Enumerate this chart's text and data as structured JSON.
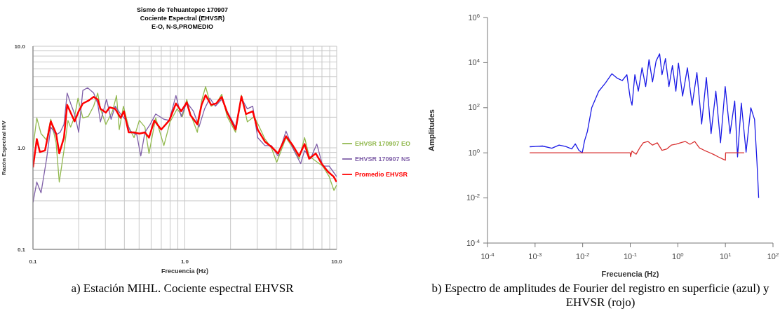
{
  "chart_data": [
    {
      "type": "line",
      "title": "Sismo de Tehuantepec 170907\nCociente Espectral  (EHVSR)\nE-O, N-S,PROMEDIO",
      "xlabel": "Frecuencia (Hz)",
      "ylabel": "Razón Espectral  H/V",
      "log": "xy",
      "grid": true,
      "legend": "right",
      "marker": "none",
      "line_style": "solid",
      "xlim": [
        0.1,
        10
      ],
      "ylim": [
        0.1,
        10
      ],
      "xticks": [
        {
          "value": 0.1,
          "label": "0.1"
        },
        {
          "value": 0.2,
          "label": null
        },
        {
          "value": 0.3,
          "label": null
        },
        {
          "value": 0.4,
          "label": null
        },
        {
          "value": 0.5,
          "label": null
        },
        {
          "value": 0.6,
          "label": null
        },
        {
          "value": 0.7,
          "label": null
        },
        {
          "value": 0.8,
          "label": null
        },
        {
          "value": 0.9,
          "label": null
        },
        {
          "value": 1,
          "label": "1.0"
        },
        {
          "value": 2,
          "label": null
        },
        {
          "value": 3,
          "label": null
        },
        {
          "value": 4,
          "label": null
        },
        {
          "value": 5,
          "label": null
        },
        {
          "value": 6,
          "label": null
        },
        {
          "value": 7,
          "label": null
        },
        {
          "value": 8,
          "label": null
        },
        {
          "value": 9,
          "label": null
        },
        {
          "value": 10,
          "label": "10.0"
        }
      ],
      "yticks": [
        {
          "value": 0.1,
          "label": "0.1"
        },
        {
          "value": 0.2,
          "label": null
        },
        {
          "value": 0.3,
          "label": null
        },
        {
          "value": 0.4,
          "label": null
        },
        {
          "value": 0.5,
          "label": null
        },
        {
          "value": 0.6,
          "label": null
        },
        {
          "value": 0.7,
          "label": null
        },
        {
          "value": 0.8,
          "label": null
        },
        {
          "value": 0.9,
          "label": null
        },
        {
          "value": 1,
          "label": "1.0"
        },
        {
          "value": 2,
          "label": null
        },
        {
          "value": 3,
          "label": null
        },
        {
          "value": 4,
          "label": null
        },
        {
          "value": 5,
          "label": null
        },
        {
          "value": 6,
          "label": null
        },
        {
          "value": 7,
          "label": null
        },
        {
          "value": 8,
          "label": null
        },
        {
          "value": 9,
          "label": null
        },
        {
          "value": 10,
          "label": "10.0"
        }
      ],
      "series": [
        {
          "name": "EHVSR 170907 EO",
          "color": "#92b94f",
          "x": [
            0.1,
            0.106,
            0.113,
            0.123,
            0.131,
            0.142,
            0.149,
            0.16,
            0.17,
            0.177,
            0.188,
            0.198,
            0.213,
            0.231,
            0.251,
            0.267,
            0.278,
            0.302,
            0.334,
            0.355,
            0.37,
            0.394,
            0.427,
            0.463,
            0.502,
            0.546,
            0.581,
            0.643,
            0.728,
            0.8,
            0.89,
            0.965,
            1.03,
            1.09,
            1.21,
            1.29,
            1.37,
            1.49,
            1.61,
            1.75,
            1.9,
            2.16,
            2.36,
            2.58,
            2.86,
            3.07,
            3.37,
            3.72,
            4.03,
            4.64,
            5.13,
            5.66,
            6.15,
            6.59,
            7.29,
            8.1,
            8.93,
            9.6,
            10
          ],
          "values": [
            1.0,
            1.97,
            1.38,
            1.19,
            1.91,
            1.12,
            0.46,
            0.94,
            1.86,
            1.6,
            2.03,
            3.08,
            1.97,
            2.03,
            2.57,
            3.46,
            2.42,
            1.7,
            2.29,
            3.27,
            1.51,
            2.57,
            1.6,
            1.26,
            1.86,
            1.6,
            0.88,
            1.97,
            1.05,
            1.8,
            2.42,
            2.03,
            3.0,
            2.15,
            1.42,
            2.9,
            4.0,
            2.57,
            2.73,
            3.37,
            2.03,
            1.42,
            3.3,
            1.8,
            2.03,
            1.65,
            1.22,
            1.0,
            0.72,
            1.26,
            1.0,
            0.78,
            1.26,
            0.83,
            0.74,
            0.66,
            0.52,
            0.38,
            0.43
          ]
        },
        {
          "name": "EHVSR 170907 NS",
          "color": "#7f5fa8",
          "x": [
            0.1,
            0.106,
            0.113,
            0.123,
            0.131,
            0.142,
            0.151,
            0.16,
            0.168,
            0.177,
            0.188,
            0.2,
            0.213,
            0.229,
            0.251,
            0.267,
            0.278,
            0.305,
            0.327,
            0.348,
            0.378,
            0.41,
            0.437,
            0.483,
            0.513,
            0.546,
            0.591,
            0.643,
            0.728,
            0.79,
            0.874,
            0.947,
            1.03,
            1.14,
            1.24,
            1.35,
            1.46,
            1.59,
            1.75,
            1.9,
            2.16,
            2.36,
            2.58,
            2.8,
            3.02,
            3.37,
            3.72,
            4.11,
            4.64,
            5.13,
            5.79,
            6.15,
            6.73,
            7.4,
            8.1,
            8.93,
            10
          ],
          "values": [
            0.29,
            0.46,
            0.36,
            0.78,
            1.6,
            1.34,
            1.42,
            1.7,
            3.46,
            2.73,
            2.15,
            1.42,
            3.67,
            3.9,
            3.46,
            2.73,
            1.8,
            3.0,
            1.91,
            2.57,
            2.15,
            1.86,
            1.46,
            1.34,
            0.83,
            1.42,
            1.7,
            2.15,
            1.91,
            1.86,
            3.27,
            2.03,
            2.8,
            2.29,
            1.6,
            2.42,
            3.08,
            2.57,
            3.0,
            2.29,
            1.6,
            3.08,
            2.42,
            2.57,
            1.26,
            1.05,
            1.05,
            0.83,
            1.46,
            1.0,
            0.7,
            0.94,
            0.78,
            1.09,
            0.66,
            0.66,
            0.52
          ]
        },
        {
          "name": "Promedio EHVSR",
          "color": "#ff0000",
          "x": [
            0.1,
            0.106,
            0.111,
            0.12,
            0.131,
            0.142,
            0.149,
            0.16,
            0.168,
            0.177,
            0.188,
            0.2,
            0.213,
            0.231,
            0.251,
            0.267,
            0.278,
            0.302,
            0.32,
            0.348,
            0.378,
            0.397,
            0.427,
            0.463,
            0.502,
            0.546,
            0.581,
            0.63,
            0.699,
            0.79,
            0.874,
            0.947,
            1.03,
            1.09,
            1.21,
            1.29,
            1.37,
            1.49,
            1.61,
            1.75,
            1.9,
            2.16,
            2.36,
            2.53,
            2.8,
            3.02,
            3.37,
            3.72,
            4.11,
            4.64,
            5.13,
            5.66,
            6.15,
            6.59,
            7.29,
            7.95,
            8.78,
            9.55,
            10
          ],
          "values": [
            0.64,
            1.22,
            0.91,
            0.94,
            1.82,
            1.38,
            0.88,
            1.26,
            2.65,
            2.22,
            1.82,
            2.29,
            2.73,
            2.9,
            3.17,
            2.99,
            2.42,
            2.22,
            2.5,
            2.42,
            1.97,
            2.29,
            1.42,
            1.42,
            1.38,
            1.42,
            1.26,
            1.86,
            1.51,
            1.86,
            2.73,
            2.29,
            2.8,
            2.09,
            1.7,
            2.65,
            3.3,
            2.65,
            2.73,
            3.17,
            2.22,
            1.51,
            3.2,
            2.15,
            2.29,
            1.51,
            1.15,
            1.02,
            0.88,
            1.3,
            1.06,
            0.83,
            1.09,
            0.78,
            0.88,
            0.7,
            0.58,
            0.52,
            0.46
          ]
        }
      ],
      "annotations": [
        "a) Estación MIHL. Cociente espectral EHVSR"
      ]
    },
    {
      "type": "line",
      "xlabel": "Frecuencia (Hz)",
      "ylabel": "Amplitudes",
      "log": "xy",
      "grid": false,
      "marker": "none",
      "line_style": "solid",
      "xlim": [
        0.0001,
        100
      ],
      "ylim": [
        0.0001,
        1000000
      ],
      "xticks": [
        {
          "value": 0.0001,
          "label": "10$^{-4}$"
        },
        {
          "value": 0.001,
          "label": "10$^{-3}$"
        },
        {
          "value": 0.01,
          "label": "10$^{-2}$"
        },
        {
          "value": 0.1,
          "label": "10$^{-1}$"
        },
        {
          "value": 1,
          "label": "10$^{0}$"
        },
        {
          "value": 10,
          "label": "10$^{1}$"
        },
        {
          "value": 100,
          "label": "10$^{2}$"
        }
      ],
      "yticks": [
        {
          "value": 0.0001,
          "label": "10$^{-4}$"
        },
        {
          "value": 0.01,
          "label": "10$^{-2}$"
        },
        {
          "value": 1,
          "label": "10$^{0}$"
        },
        {
          "value": 100,
          "label": "10$^{2}$"
        },
        {
          "value": 10000,
          "label": "10$^{4}$"
        },
        {
          "value": 1000000,
          "label": "10$^{6}$"
        }
      ],
      "series": [
        {
          "color": "#1a1ae6",
          "x": [
            0.00077,
            0.00143,
            0.00225,
            0.0032,
            0.0044,
            0.0059,
            0.007,
            0.0083,
            0.0098,
            0.011,
            0.0126,
            0.0155,
            0.0218,
            0.03,
            0.041,
            0.054,
            0.068,
            0.085,
            0.1,
            0.109,
            0.125,
            0.148,
            0.177,
            0.211,
            0.248,
            0.294,
            0.35,
            0.415,
            0.465,
            0.55,
            0.65,
            0.77,
            0.91,
            1.03,
            1.26,
            1.59,
            2.0,
            2.52,
            3.17,
            3.98,
            5.0,
            6.3,
            7.9,
            9.9,
            12.5,
            15.7,
            18,
            21.6,
            27.2,
            34.2,
            41,
            46,
            48.6,
            50
          ],
          "values": [
            1.86,
            2.0,
            1.6,
            2.2,
            1.9,
            1.5,
            2.5,
            1.3,
            1.0,
            3.5,
            9,
            100,
            540,
            1230,
            3200,
            2000,
            1600,
            2900,
            260,
            130,
            2900,
            540,
            5900,
            870,
            13500,
            1400,
            12000,
            24500,
            2900,
            15000,
            870,
            7400,
            540,
            9500,
            330,
            5900,
            130,
            3600,
            19,
            2200,
            7.2,
            540,
            2.8,
            870,
            7.2,
            200,
            0.66,
            160,
            1.07,
            100,
            30,
            0.41,
            0.038,
            0.01
          ]
        },
        {
          "color": "#d83030",
          "x": [
            0.00077,
            0.1,
            0.1015,
            0.109,
            0.133,
            0.158,
            0.188,
            0.236,
            0.294,
            0.37,
            0.465,
            0.59,
            0.73,
            0.91,
            1.14,
            1.44,
            1.8,
            2.26,
            2.84,
            3.57,
            4.5,
            5.6,
            7.1,
            9.0,
            10,
            10.1,
            24.8
          ],
          "values": [
            1.0,
            1.0,
            0.68,
            1.2,
            0.87,
            1.65,
            2.8,
            3.2,
            2.2,
            2.8,
            1.3,
            1.5,
            2.2,
            2.4,
            2.8,
            3.2,
            2.4,
            3.2,
            1.65,
            1.3,
            1.05,
            0.86,
            0.66,
            0.52,
            0.47,
            1.0,
            1.0
          ]
        }
      ],
      "annotations": [
        "b) Espectro de amplitudes de Fourier del registro en superficie (azul) y EHVSR (rojo)"
      ]
    }
  ]
}
